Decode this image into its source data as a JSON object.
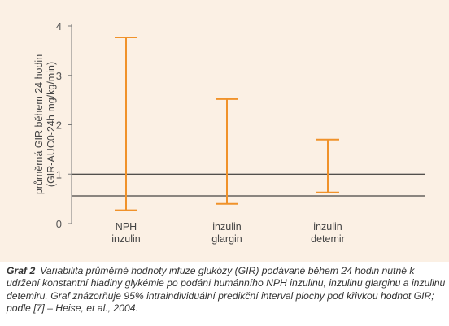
{
  "chart_data": {
    "type": "error-bar",
    "categories": [
      [
        "NPH",
        "inzulin"
      ],
      [
        "inzulin",
        "glargin"
      ],
      [
        "inzulin",
        "detemir"
      ]
    ],
    "intervals": [
      {
        "low": 0.27,
        "high": 3.77
      },
      {
        "low": 0.4,
        "high": 2.52
      },
      {
        "low": 0.63,
        "high": 1.7
      }
    ],
    "reference_lines": [
      1.0,
      0.56
    ],
    "ylabel_lines": [
      "průměrná GIR během 24 hodin",
      "(GIR-AUC0-24h mg/kg/min)"
    ],
    "yticks": [
      0,
      1,
      2,
      3,
      4
    ],
    "ylim": [
      0,
      4
    ],
    "colors": {
      "bars": "#f0922a",
      "background": "#fbf0e4",
      "axis": "#7a7a7a",
      "lines": "#1a1a1a"
    }
  },
  "caption": {
    "label": "Graf 2",
    "text": "Variabilita průměrné hodnoty infuze glukózy (GIR) podávané během 24 hodin nutné k udržení konstantní hladiny glykémie po podání humánního NPH inzulinu, inzulinu glarginu a inzulinu detemiru. Graf znázorňuje 95% intraindividuální predikční interval plochy pod křivkou hodnot GIR; podle [7] – Heise, et al., 2004."
  }
}
